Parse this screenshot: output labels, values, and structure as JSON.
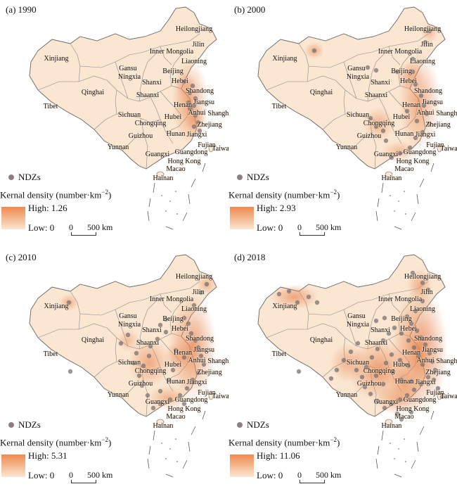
{
  "panels": [
    {
      "title": "(a) 1990",
      "high": "High: 1.26",
      "low": "Low: 0"
    },
    {
      "title": "(b) 2000",
      "high": "High: 2.93",
      "low": "Low: 0"
    },
    {
      "title": "(c) 2010",
      "high": "High: 5.31",
      "low": "Low: 0"
    },
    {
      "title": "(d) 2018",
      "high": "High: 11.06",
      "low": "Low: 0"
    }
  ],
  "legend": {
    "ndz_label": "NDZs",
    "density_label": "Kernal density (number·km",
    "density_exp": "−2",
    "density_close": ")",
    "scale_zero": "0",
    "scale_label": "500 km"
  },
  "provinces": [
    "Xinjiang",
    "Tibet",
    "Qinghai",
    "Gansu",
    "Ningxia",
    "Inner Mongolia",
    "Heilongjiang",
    "Jilin",
    "Liaoning",
    "Beijing",
    "Hebei",
    "Shanxi",
    "Shandong",
    "Shaanxi",
    "Henan",
    "Jiangsu",
    "Anhui",
    "Shanghai",
    "Sichuan",
    "Hubei",
    "Chongqing",
    "Zhejiang",
    "Guizhou",
    "Hunan",
    "Jiangxi",
    "Fujian",
    "Yunnan",
    "Guangxi",
    "Guangdong",
    "Taiwan",
    "Hong Kong",
    "Macao",
    "Hainan"
  ],
  "colors": {
    "land": "#fbe6d2",
    "border": "#888888",
    "hotspot": "#e98a55",
    "point": "#7a7272"
  }
}
